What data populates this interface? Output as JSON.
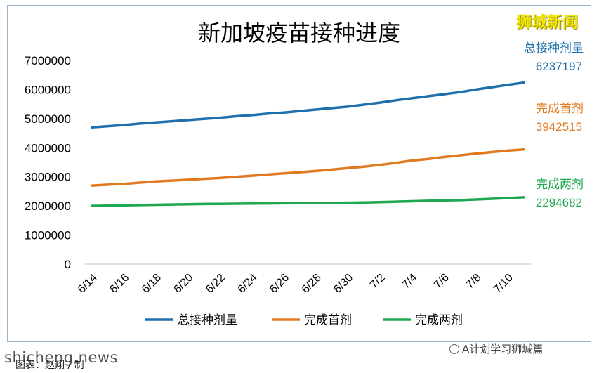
{
  "chart_data": {
    "type": "line",
    "title": "新加坡疫苗接种进度",
    "xlabel": "",
    "ylabel": "",
    "ylim": [
      0,
      7000000
    ],
    "yticks": [
      0,
      1000000,
      2000000,
      3000000,
      4000000,
      5000000,
      6000000,
      7000000
    ],
    "x": [
      "6/14",
      "6/15",
      "6/16",
      "6/17",
      "6/18",
      "6/19",
      "6/20",
      "6/21",
      "6/22",
      "6/23",
      "6/24",
      "6/25",
      "6/26",
      "6/27",
      "6/28",
      "6/29",
      "6/30",
      "7/1",
      "7/2",
      "7/3",
      "7/4",
      "7/5",
      "7/6",
      "7/7",
      "7/8",
      "7/9",
      "7/10",
      "7/11"
    ],
    "xtick_labels": [
      "6/14",
      "6/16",
      "6/18",
      "6/20",
      "6/22",
      "6/24",
      "6/26",
      "6/28",
      "6/30",
      "7/2",
      "7/4",
      "7/6",
      "7/8",
      "7/10"
    ],
    "grid": false,
    "legend_position": "bottom",
    "series": [
      {
        "name": "总接种剂量",
        "color": "#1f6fad",
        "end_label": "总接种剂量",
        "end_value": "6237197",
        "values": [
          4700000,
          4740000,
          4780000,
          4830000,
          4870000,
          4910000,
          4950000,
          4990000,
          5030000,
          5080000,
          5120000,
          5170000,
          5210000,
          5260000,
          5310000,
          5360000,
          5410000,
          5480000,
          5550000,
          5630000,
          5700000,
          5770000,
          5840000,
          5910000,
          6000000,
          6080000,
          6160000,
          6237197
        ]
      },
      {
        "name": "完成首剂",
        "color": "#e07a1f",
        "end_label": "完成首剂",
        "end_value": "3942515",
        "values": [
          2700000,
          2730000,
          2760000,
          2800000,
          2840000,
          2870000,
          2900000,
          2930000,
          2960000,
          3000000,
          3040000,
          3080000,
          3120000,
          3160000,
          3200000,
          3250000,
          3300000,
          3350000,
          3410000,
          3480000,
          3560000,
          3610000,
          3680000,
          3740000,
          3800000,
          3850000,
          3900000,
          3942515
        ]
      },
      {
        "name": "完成两剂",
        "color": "#1fa84f",
        "end_label": "完成两剂",
        "end_value": "2294682",
        "values": [
          2000000,
          2010000,
          2020000,
          2030000,
          2040000,
          2050000,
          2060000,
          2065000,
          2070000,
          2075000,
          2080000,
          2085000,
          2090000,
          2095000,
          2100000,
          2105000,
          2110000,
          2120000,
          2130000,
          2145000,
          2160000,
          2175000,
          2190000,
          2200000,
          2220000,
          2245000,
          2270000,
          2294682
        ]
      }
    ]
  },
  "brand": "狮城新闻",
  "watermark_left": "shicheng.news",
  "watermark_right": "A计划学习狮城篇",
  "caption": "图表：赵翔 / 制"
}
